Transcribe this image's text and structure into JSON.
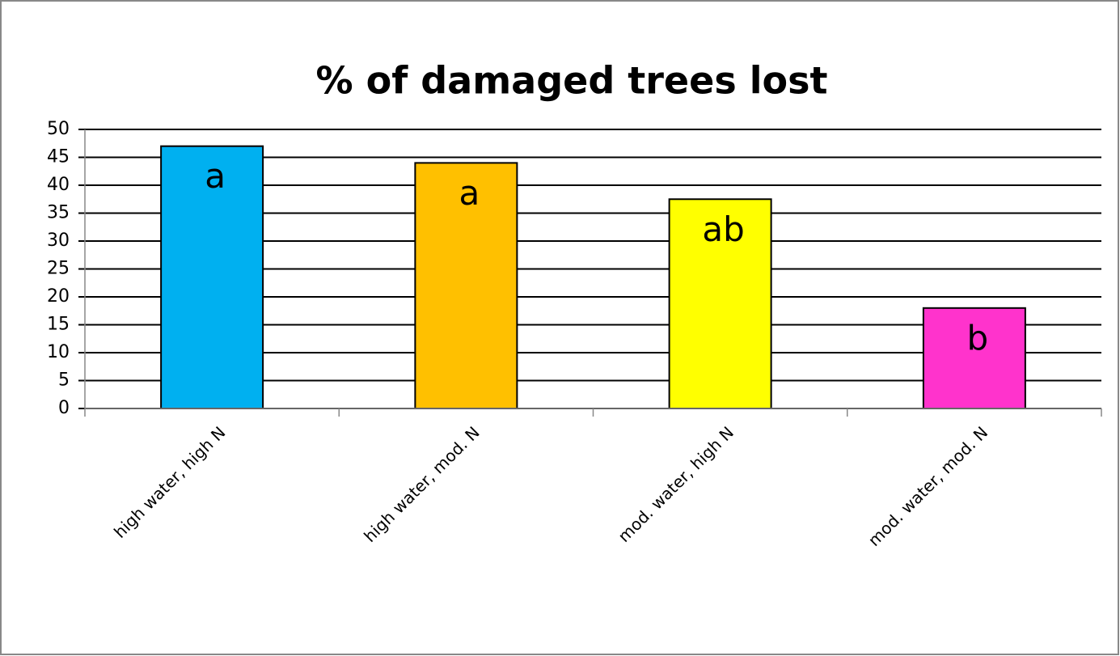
{
  "chart_data": {
    "type": "bar",
    "title": "% of damaged trees lost",
    "categories": [
      "high water, high N",
      "high water, mod. N",
      "mod. water, high N",
      "mod. water, mod. N"
    ],
    "values": [
      47,
      44,
      37.5,
      18
    ],
    "colors": [
      "#00b0f0",
      "#ffc000",
      "#ffff00",
      "#ff33cc"
    ],
    "bar_labels": [
      "a",
      "a",
      "ab",
      "b"
    ],
    "ylim": [
      0,
      50
    ],
    "yticks": [
      0,
      5,
      10,
      15,
      20,
      25,
      30,
      35,
      40,
      45,
      50
    ],
    "grid": true
  }
}
